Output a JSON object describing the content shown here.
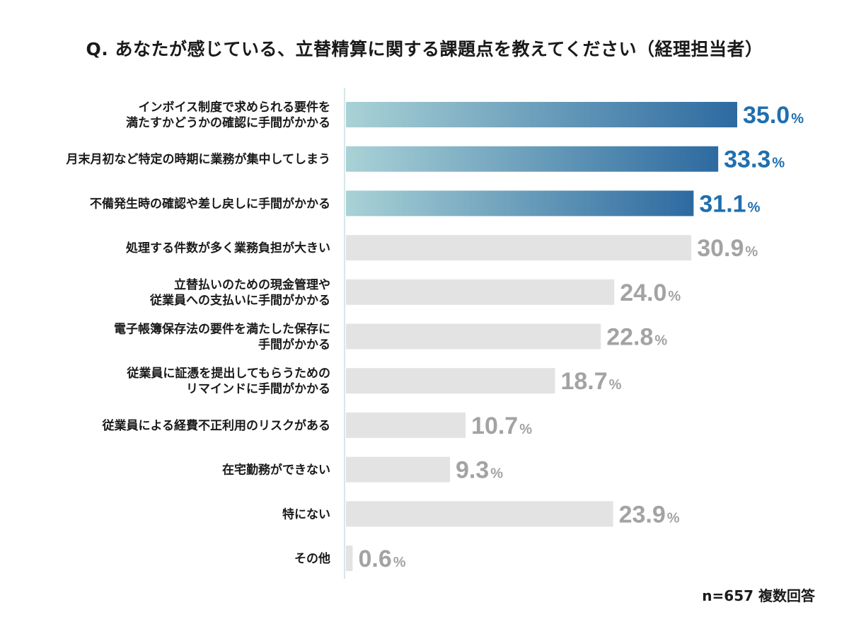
{
  "title": "Q. あなたが感じている、立替精算に関する課題点を教えてください（経理担当者）",
  "note": "n=657 複数回答",
  "colors": {
    "highlight_start": "#a9d2d6",
    "highlight_end": "#2d6aa0",
    "highlight_text": "#1f6fb0",
    "normal_bar": "#e3e3e3",
    "normal_text": "#a3a3a3",
    "axis": "#d8e6e8"
  },
  "chart_data": {
    "type": "bar",
    "orientation": "horizontal",
    "unit": "%",
    "xlim": [
      0,
      35
    ],
    "categories": [
      [
        "インボイス制度で求められる要件を",
        "満たすかどうかの確認に手間がかかる"
      ],
      [
        "月末月初など特定の時期に業務が集中してしまう"
      ],
      [
        "不備発生時の確認や差し戻しに手間がかかる"
      ],
      [
        "処理する件数が多く業務負担が大きい"
      ],
      [
        "立替払いのための現金管理や",
        "従業員への支払いに手間がかかる"
      ],
      [
        "電子帳簿保存法の要件を満たした保存に",
        "手間がかかる"
      ],
      [
        "従業員に証憑を提出してもらうための",
        "リマインドに手間がかかる"
      ],
      [
        "従業員による経費不正利用のリスクがある"
      ],
      [
        "在宅勤務ができない"
      ],
      [
        "特にない"
      ],
      [
        "その他"
      ]
    ],
    "values": [
      35.0,
      33.3,
      31.1,
      30.9,
      24.0,
      22.8,
      18.7,
      10.7,
      9.3,
      23.9,
      0.6
    ],
    "value_labels": [
      "35.0",
      "33.3",
      "31.1",
      "30.9",
      "24.0",
      "22.8",
      "18.7",
      "10.7",
      "9.3",
      "23.9",
      "0.6"
    ],
    "highlighted": [
      true,
      true,
      true,
      false,
      false,
      false,
      false,
      false,
      false,
      false,
      false
    ]
  }
}
